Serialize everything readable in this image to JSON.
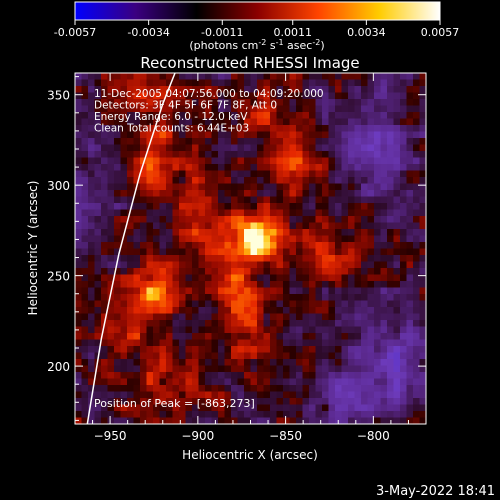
{
  "chart_data": {
    "type": "heatmap",
    "title": "Reconstructed RHESSI Image",
    "xlabel": "Heliocentric X (arcsec)",
    "ylabel": "Heliocentric Y (arcsec)",
    "xlim": [
      -970,
      -770
    ],
    "ylim": [
      168,
      362
    ],
    "x_ticks": [
      -950,
      -900,
      -850,
      -800
    ],
    "y_ticks": [
      200,
      250,
      300,
      350
    ],
    "colorbar": {
      "ticks": [
        "-0.0057",
        "-0.0034",
        "-0.0011",
        "0.0011",
        "0.0034",
        "0.0057"
      ],
      "range": [
        -0.0057,
        0.0057
      ],
      "units_main": "(photons cm",
      "units_exp1": "-2",
      "units_s": " s",
      "units_exp2": "-1",
      "units_asec": " asec",
      "units_exp3": "-2",
      "units_close": ")",
      "colormap": [
        "#0000ff",
        "#3a0080",
        "#000000",
        "#8b0000",
        "#ff4400",
        "#ffcc00",
        "#ffffff"
      ]
    },
    "annotations": [
      "11-Dec-2005 04:07:56.000 to 04:09:20.000",
      "Detectors: 3F 4F 5F 6F 7F 8F, Att 0",
      "Energy Range: 6.0 - 12.0 keV",
      "Clean     Total counts: 6.44E+03"
    ],
    "peak_label": "Position of Peak = [-863,273]",
    "peak": [
      -863,
      273
    ],
    "limb_line": [
      [
        -963,
        168
      ],
      [
        -955,
        215
      ],
      [
        -945,
        262
      ],
      [
        -933,
        306
      ],
      [
        -920,
        345
      ],
      [
        -913,
        362
      ]
    ],
    "hot_spots": [
      {
        "x": -864,
        "y": 272,
        "amp": 0.0057,
        "sx": 10,
        "sy": 9
      },
      {
        "x": -880,
        "y": 258,
        "amp": 0.003,
        "sx": 10,
        "sy": 12
      },
      {
        "x": -925,
        "y": 240,
        "amp": 0.0036,
        "sx": 9,
        "sy": 10
      },
      {
        "x": -940,
        "y": 225,
        "amp": 0.0022,
        "sx": 10,
        "sy": 12
      },
      {
        "x": -900,
        "y": 282,
        "amp": 0.0028,
        "sx": 12,
        "sy": 14
      },
      {
        "x": -925,
        "y": 318,
        "amp": 0.003,
        "sx": 10,
        "sy": 12
      },
      {
        "x": -845,
        "y": 310,
        "amp": 0.0028,
        "sx": 10,
        "sy": 10
      },
      {
        "x": -825,
        "y": 262,
        "amp": 0.0024,
        "sx": 10,
        "sy": 10
      },
      {
        "x": -875,
        "y": 225,
        "amp": 0.0024,
        "sx": 12,
        "sy": 15
      },
      {
        "x": -920,
        "y": 190,
        "amp": 0.002,
        "sx": 12,
        "sy": 12
      },
      {
        "x": -857,
        "y": 340,
        "amp": 0.002,
        "sx": 10,
        "sy": 8
      },
      {
        "x": -930,
        "y": 350,
        "amp": 0.0018,
        "sx": 10,
        "sy": 7
      },
      {
        "x": -800,
        "y": 325,
        "amp": -0.003,
        "sx": 14,
        "sy": 20
      },
      {
        "x": -790,
        "y": 200,
        "amp": -0.0034,
        "sx": 16,
        "sy": 22
      },
      {
        "x": -820,
        "y": 185,
        "amp": -0.0022,
        "sx": 12,
        "sy": 10
      },
      {
        "x": -960,
        "y": 300,
        "amp": -0.0018,
        "sx": 10,
        "sy": 18
      }
    ]
  },
  "footer": {
    "date": "3-May-2022 18:41"
  }
}
